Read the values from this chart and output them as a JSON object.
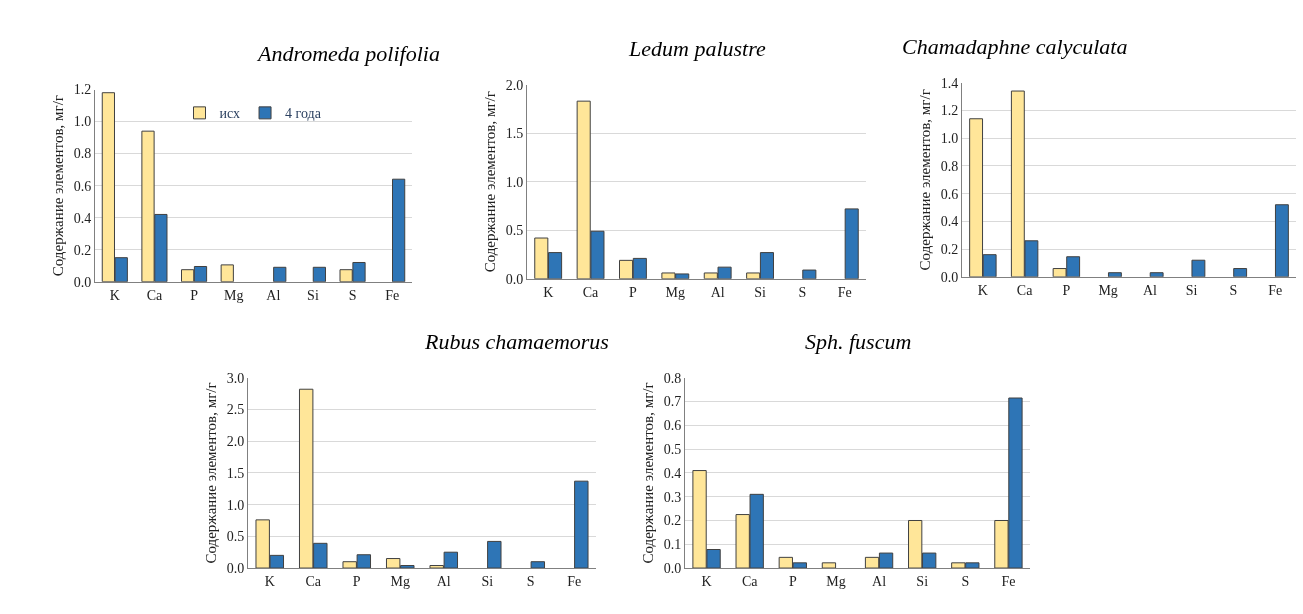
{
  "chart_data": [
    {
      "type": "bar",
      "title": "Andromeda polifolia",
      "ylabel": "Содержание элементов, мг/г",
      "categories": [
        "K",
        "Ca",
        "P",
        "Mg",
        "Al",
        "Si",
        "S",
        "Fe"
      ],
      "ylim": [
        0,
        1.2
      ],
      "yticks": [
        {
          "value": 0,
          "label": "0.0"
        },
        {
          "value": 0.2,
          "label": "0.2"
        },
        {
          "value": 0.4,
          "label": "0.4"
        },
        {
          "value": 0.6,
          "label": "0.6"
        },
        {
          "value": 0.8,
          "label": "0.8"
        },
        {
          "value": 1.0,
          "label": "1.0"
        },
        {
          "value": 1.2,
          "label": "1.2"
        }
      ],
      "grid": "y",
      "legend": "top",
      "series": [
        {
          "name": "исх",
          "color": "#ffe699",
          "values": [
            1.18,
            0.94,
            0.075,
            0.105,
            null,
            null,
            0.075,
            null
          ]
        },
        {
          "name": "4 года",
          "color": "#2e75b6",
          "values": [
            0.15,
            0.42,
            0.095,
            null,
            0.09,
            0.09,
            0.12,
            0.64
          ]
        }
      ]
    },
    {
      "type": "bar",
      "title": "Ledum palustre",
      "ylabel": "Содержание элементов, мг/г",
      "categories": [
        "K",
        "Ca",
        "P",
        "Mg",
        "Al",
        "Si",
        "S",
        "Fe"
      ],
      "ylim": [
        0,
        2.0
      ],
      "yticks": [
        {
          "value": 0,
          "label": "0.0"
        },
        {
          "value": 0.5,
          "label": "0.5"
        },
        {
          "value": 1.0,
          "label": "1.0"
        },
        {
          "value": 1.5,
          "label": "1.5"
        },
        {
          "value": 2.0,
          "label": "2.0"
        }
      ],
      "grid": "y",
      "series": [
        {
          "color": "#ffe699",
          "values": [
            0.42,
            1.83,
            0.19,
            0.06,
            0.06,
            0.06,
            null,
            null
          ]
        },
        {
          "color": "#2e75b6",
          "values": [
            0.27,
            0.49,
            0.21,
            0.05,
            0.12,
            0.27,
            0.09,
            0.72
          ]
        }
      ]
    },
    {
      "type": "bar",
      "title": "Chamadaphne calyculata",
      "ylabel": "Содержание элементов, мг/г",
      "categories": [
        "K",
        "Ca",
        "P",
        "Mg",
        "Al",
        "Si",
        "S",
        "Fe"
      ],
      "ylim": [
        0,
        1.4
      ],
      "yticks": [
        {
          "value": 0,
          "label": "0.0"
        },
        {
          "value": 0.2,
          "label": "0.2"
        },
        {
          "value": 0.4,
          "label": "0.4"
        },
        {
          "value": 0.6,
          "label": "0.6"
        },
        {
          "value": 0.8,
          "label": "0.8"
        },
        {
          "value": 1.0,
          "label": "1.0"
        },
        {
          "value": 1.2,
          "label": "1.2"
        },
        {
          "value": 1.4,
          "label": "1.4"
        }
      ],
      "grid": "y",
      "series": [
        {
          "color": "#ffe699",
          "values": [
            1.14,
            1.34,
            0.06,
            null,
            null,
            null,
            null,
            null
          ]
        },
        {
          "color": "#2e75b6",
          "values": [
            0.16,
            0.26,
            0.145,
            0.03,
            0.03,
            0.12,
            0.06,
            0.52
          ]
        }
      ]
    },
    {
      "type": "bar",
      "title": "Rubus chamaemorus",
      "ylabel": "Содержание элементов, мг/г",
      "categories": [
        "K",
        "Ca",
        "P",
        "Mg",
        "Al",
        "Si",
        "S",
        "Fe"
      ],
      "ylim": [
        0,
        3.0
      ],
      "yticks": [
        {
          "value": 0,
          "label": "0.0"
        },
        {
          "value": 0.5,
          "label": "0.5"
        },
        {
          "value": 1.0,
          "label": "1.0"
        },
        {
          "value": 1.5,
          "label": "1.5"
        },
        {
          "value": 2.0,
          "label": "2.0"
        },
        {
          "value": 2.5,
          "label": "2.5"
        },
        {
          "value": 3.0,
          "label": "3.0"
        }
      ],
      "grid": "y",
      "series": [
        {
          "color": "#ffe699",
          "values": [
            0.76,
            2.82,
            0.1,
            0.15,
            0.04,
            null,
            null,
            null
          ]
        },
        {
          "color": "#2e75b6",
          "values": [
            0.2,
            0.39,
            0.21,
            0.04,
            0.25,
            0.42,
            0.1,
            1.37
          ]
        }
      ]
    },
    {
      "type": "bar",
      "title": "Sph. fuscum",
      "ylabel": "Содержание элементов, мг/г",
      "categories": [
        "K",
        "Ca",
        "P",
        "Mg",
        "Al",
        "Si",
        "S",
        "Fe"
      ],
      "ylim": [
        0,
        0.8
      ],
      "yticks": [
        {
          "value": 0,
          "label": "0.0"
        },
        {
          "value": 0.1,
          "label": "0.1"
        },
        {
          "value": 0.2,
          "label": "0.2"
        },
        {
          "value": 0.3,
          "label": "0.3"
        },
        {
          "value": 0.4,
          "label": "0.4"
        },
        {
          "value": 0.5,
          "label": "0.5"
        },
        {
          "value": 0.6,
          "label": "0.6"
        },
        {
          "value": 0.7,
          "label": "0.7"
        },
        {
          "value": 0.8,
          "label": "0.8"
        }
      ],
      "grid": "y",
      "series": [
        {
          "color": "#ffe699",
          "values": [
            0.41,
            0.225,
            0.045,
            0.022,
            0.045,
            0.2,
            0.022,
            0.2
          ]
        },
        {
          "color": "#2e75b6",
          "values": [
            0.078,
            0.31,
            0.022,
            null,
            0.063,
            0.063,
            0.022,
            0.715
          ]
        }
      ]
    }
  ]
}
